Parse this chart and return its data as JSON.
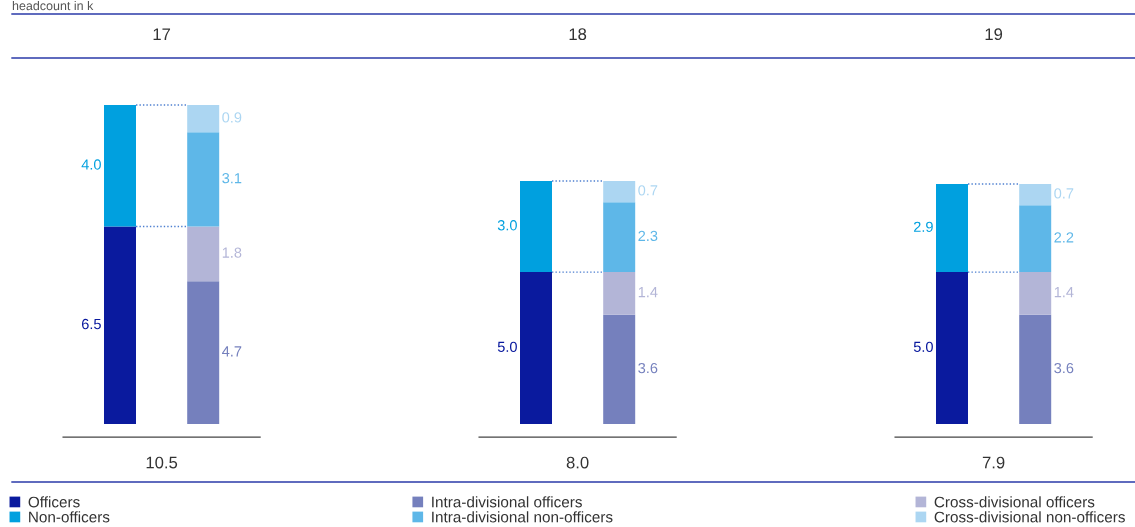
{
  "chart_data": {
    "type": "bar",
    "title": "headcount in k",
    "stacked": true,
    "legend": "bottom",
    "categories": [
      null,
      "17",
      null,
      null,
      null,
      null,
      null,
      null,
      null,
      null,
      null,
      "18",
      null,
      null,
      null,
      null,
      null,
      null,
      null,
      null,
      null,
      "19",
      null
    ],
    "annotations": [
      "10.5",
      "8.0",
      "7.9"
    ],
    "series": [
      {
        "name": "Officers",
        "color": "#0a1a9e",
        "values": [
          6.5,
          null,
          null,
          null,
          null,
          null,
          null,
          null,
          null,
          null,
          5.0,
          null,
          null,
          null,
          null,
          null,
          null,
          null,
          null,
          null,
          5.0,
          null,
          null
        ],
        "value_labels": [
          "6.5",
          null,
          null,
          null,
          null,
          null,
          null,
          null,
          null,
          null,
          "5.0",
          null,
          null,
          null,
          null,
          null,
          null,
          null,
          null,
          null,
          "5.0",
          null,
          null
        ]
      },
      {
        "name": "Non-officers",
        "color": "#00a0df",
        "values": [
          4.0,
          null,
          null,
          null,
          null,
          null,
          null,
          null,
          null,
          null,
          3.0,
          null,
          null,
          null,
          null,
          null,
          null,
          null,
          null,
          null,
          2.9,
          null,
          null
        ],
        "value_labels": [
          "4.0",
          null,
          null,
          null,
          null,
          null,
          null,
          null,
          null,
          null,
          "3.0",
          null,
          null,
          null,
          null,
          null,
          null,
          null,
          null,
          null,
          "2.9",
          null,
          null
        ]
      },
      {
        "name": "Intra-divisional officers",
        "color": "#7580bd",
        "values": [
          null,
          null,
          4.7,
          null,
          null,
          null,
          null,
          null,
          null,
          null,
          null,
          null,
          3.6,
          null,
          null,
          null,
          null,
          null,
          null,
          null,
          null,
          null,
          3.6
        ],
        "value_labels": [
          null,
          null,
          "4.7",
          null,
          null,
          null,
          null,
          null,
          null,
          null,
          null,
          null,
          "3.6",
          null,
          null,
          null,
          null,
          null,
          null,
          null,
          null,
          null,
          "3.6"
        ]
      },
      {
        "name": "Cross-divisional officers",
        "color": "#b3b5d7",
        "values": [
          null,
          null,
          1.8,
          null,
          null,
          null,
          null,
          null,
          null,
          null,
          null,
          null,
          1.4,
          null,
          null,
          null,
          null,
          null,
          null,
          null,
          null,
          null,
          1.4
        ],
        "value_labels": [
          null,
          null,
          "1.8",
          null,
          null,
          null,
          null,
          null,
          null,
          null,
          null,
          null,
          "1.4",
          null,
          null,
          null,
          null,
          null,
          null,
          null,
          null,
          null,
          "1.4"
        ]
      },
      {
        "name": "Intra-divisional non-officers",
        "color": "#5eb7e8",
        "values": [
          null,
          null,
          3.1,
          null,
          null,
          null,
          null,
          null,
          null,
          null,
          null,
          null,
          2.3,
          null,
          null,
          null,
          null,
          null,
          null,
          null,
          null,
          null,
          2.2
        ],
        "value_labels": [
          null,
          null,
          "3.1",
          null,
          null,
          null,
          null,
          null,
          null,
          null,
          null,
          null,
          "2.3",
          null,
          null,
          null,
          null,
          null,
          null,
          null,
          null,
          null,
          "2.2"
        ]
      },
      {
        "name": "Cross-divisional non-officers",
        "color": "#acd6f2",
        "values": [
          null,
          null,
          0.9,
          null,
          null,
          null,
          null,
          null,
          null,
          null,
          null,
          null,
          0.7,
          null,
          null,
          null,
          null,
          null,
          null,
          null,
          null,
          null,
          0.7
        ],
        "value_labels": [
          null,
          null,
          "0.9",
          null,
          null,
          null,
          null,
          null,
          null,
          null,
          null,
          null,
          "0.7",
          null,
          null,
          null,
          null,
          null,
          null,
          null,
          null,
          null,
          "0.7"
        ]
      }
    ]
  }
}
